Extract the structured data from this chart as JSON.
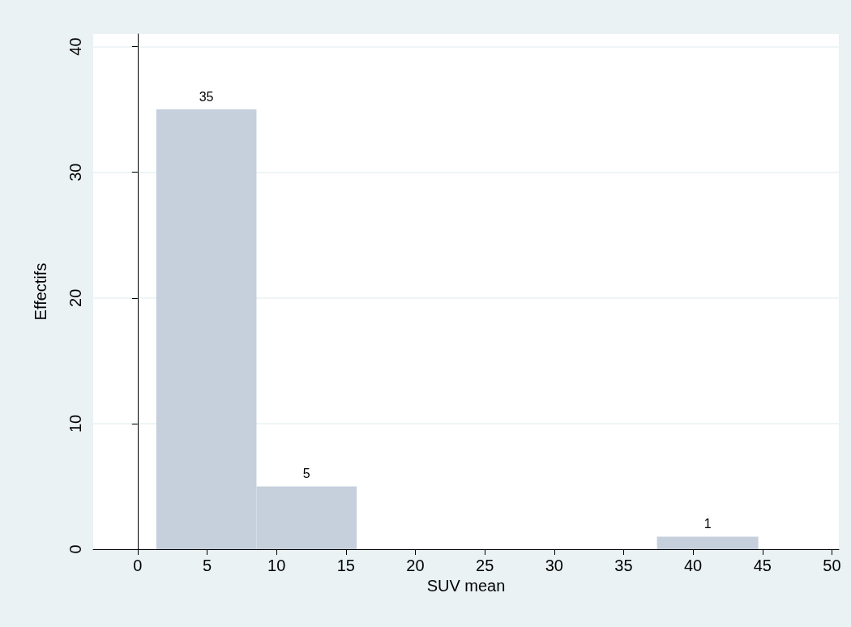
{
  "chart_data": {
    "type": "histogram",
    "xlabel": "SUV mean",
    "ylabel": "Effectifs",
    "bins": [
      1.34,
      8.56,
      15.78,
      37.4,
      44.7
    ],
    "values": [
      35,
      5,
      0,
      1
    ],
    "value_labels": [
      "35",
      "5",
      null,
      "1"
    ],
    "color": "#c6d0dc",
    "xlim": [
      -3.2,
      50.5
    ],
    "xticks": [
      0,
      5,
      10,
      15,
      20,
      25,
      30,
      35,
      40,
      45,
      50
    ],
    "ylim": [
      0,
      41
    ],
    "yticks": [
      0,
      10,
      20,
      30,
      40
    ],
    "grid": "y"
  }
}
